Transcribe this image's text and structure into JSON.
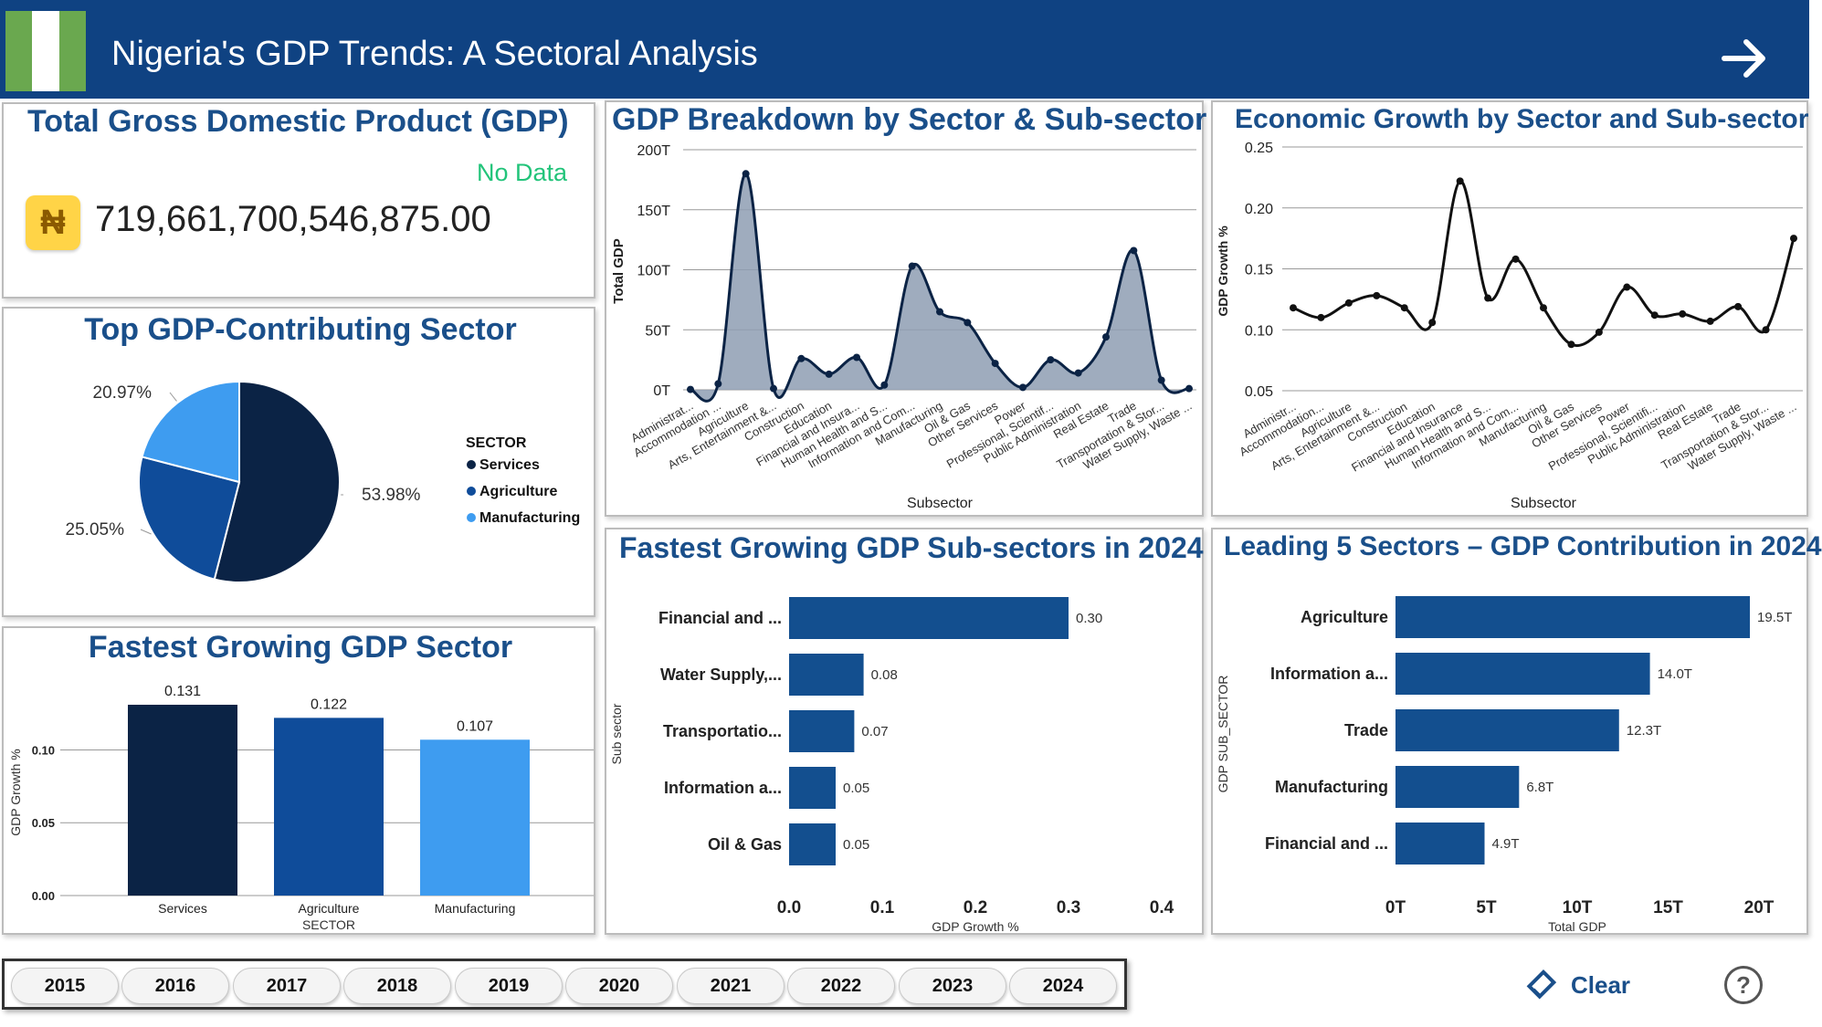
{
  "header": {
    "title": "Nigeria's GDP Trends: A Sectoral Analysis",
    "flag_icon": "nigeria-flag-icon",
    "nav_icon": "arrow-right-icon"
  },
  "colors": {
    "header_bg": "#0f4282",
    "title_blue": "#1a4f8a",
    "no_data_green": "#22c47a",
    "services": "#0b2345",
    "agriculture": "#0f4c9a",
    "manufacturing": "#3e9cf0",
    "bar_blue": "#134f8f",
    "area_fill": "#8e9db3"
  },
  "total_gdp": {
    "title": "Total Gross Domestic Product (GDP)",
    "status": "No Data",
    "value": "719,661,700,546,875.00",
    "currency_icon": "naira-icon",
    "currency_symbol": "₦"
  },
  "top_sector": {
    "title": "Top GDP-Contributing Sector",
    "legend_title": "SECTOR",
    "chart_data": {
      "type": "pie",
      "labels": [
        "Services",
        "Agriculture",
        "Manufacturing"
      ],
      "values": [
        53.98,
        25.05,
        20.97
      ],
      "value_labels": [
        "53.98%",
        "25.05%",
        "20.97%"
      ],
      "colors": [
        "#0b2345",
        "#0f4c9a",
        "#3e9cf0"
      ],
      "legend_position": "right"
    }
  },
  "fastest_sector": {
    "title": "Fastest Growing GDP Sector",
    "chart_data": {
      "type": "bar",
      "categories": [
        "Services",
        "Agriculture",
        "Manufacturing"
      ],
      "values": [
        0.131,
        0.122,
        0.107
      ],
      "value_labels": [
        "0.131",
        "0.122",
        "0.107"
      ],
      "colors": [
        "#0b2345",
        "#0f4c9a",
        "#3e9cf0"
      ],
      "xlabel": "SECTOR",
      "ylabel": "GDP Growth %",
      "yticks": [
        "0.00",
        "0.05",
        "0.10"
      ],
      "ylim": [
        0,
        0.131
      ],
      "grid": true
    }
  },
  "breakdown": {
    "title": "GDP Breakdown by Sector & Sub-sector",
    "chart_data": {
      "type": "area",
      "xlabel": "Subsector",
      "ylabel": "Total GDP",
      "yticks": [
        "0T",
        "50T",
        "100T",
        "150T",
        "200T"
      ],
      "ylim": [
        0,
        200
      ],
      "grid": true,
      "categories": [
        "Administrat...",
        "Accommodation ...",
        "Agriculture",
        "Arts, Entertainment &...",
        "Construction",
        "Education",
        "Financial and Insura...",
        "Human Health and S...",
        "Information and Com...",
        "Manufacturing",
        "Oil & Gas",
        "Other Services",
        "Power",
        "Professional, Scientif...",
        "Public Administration",
        "Real Estate",
        "Trade",
        "Transportation & Stor...",
        "Water Supply, Waste ..."
      ],
      "values": [
        0.3,
        5,
        180,
        1,
        26,
        13,
        27,
        4,
        103,
        65,
        56,
        22,
        2,
        25,
        14,
        44,
        116,
        8,
        1
      ]
    }
  },
  "growth": {
    "title": "Economic Growth by Sector and Sub-sector",
    "chart_data": {
      "type": "line",
      "xlabel": "Subsector",
      "ylabel": "GDP Growth %",
      "yticks": [
        "0.05",
        "0.10",
        "0.15",
        "0.20",
        "0.25"
      ],
      "ylim": [
        0.05,
        0.25
      ],
      "grid": true,
      "categories": [
        "Administr...",
        "Accommodation...",
        "Agriculture",
        "Arts, Entertainment &...",
        "Construction",
        "Education",
        "Financial and Insurance",
        "Human Health and S...",
        "Information and Com...",
        "Manufacturing",
        "Oil & Gas",
        "Other Services",
        "Power",
        "Professional, Scientifi...",
        "Public Administration",
        "Real Estate",
        "Trade",
        "Transportation & Stor...",
        "Water Supply, Waste ..."
      ],
      "values": [
        0.118,
        0.11,
        0.122,
        0.128,
        0.118,
        0.106,
        0.222,
        0.126,
        0.158,
        0.118,
        0.088,
        0.098,
        0.135,
        0.112,
        0.113,
        0.107,
        0.119,
        0.1,
        0.175
      ]
    }
  },
  "fastest_sub": {
    "title": "Fastest Growing GDP Sub-sectors in 2024",
    "chart_data": {
      "type": "bar",
      "orientation": "horizontal",
      "categories": [
        "Financial and ...",
        "Water Supply,...",
        "Transportatio...",
        "Information a...",
        "Oil & Gas"
      ],
      "values": [
        0.3,
        0.08,
        0.07,
        0.05,
        0.05
      ],
      "value_labels": [
        "0.30",
        "0.08",
        "0.07",
        "0.05",
        "0.05"
      ],
      "xticks": [
        "0.0",
        "0.1",
        "0.2",
        "0.3",
        "0.4"
      ],
      "xlim": [
        0,
        0.4
      ],
      "xlabel": "GDP Growth %",
      "ylabel": "Sub sector"
    }
  },
  "leading": {
    "title": "Leading 5 Sectors – GDP Contribution in 2024",
    "chart_data": {
      "type": "bar",
      "orientation": "horizontal",
      "categories": [
        "Agriculture",
        "Information a...",
        "Trade",
        "Manufacturing",
        "Financial and ..."
      ],
      "values": [
        19.5,
        14.0,
        12.3,
        6.8,
        4.9
      ],
      "value_labels": [
        "19.5T",
        "14.0T",
        "12.3T",
        "6.8T",
        "4.9T"
      ],
      "xticks": [
        "0T",
        "5T",
        "10T",
        "15T",
        "20T"
      ],
      "xlim": [
        0,
        20
      ],
      "xlabel": "Total GDP",
      "ylabel": "GDP SUB_SECTOR"
    }
  },
  "years": [
    "2015",
    "2016",
    "2017",
    "2018",
    "2019",
    "2020",
    "2021",
    "2022",
    "2023",
    "2024"
  ],
  "actions": {
    "clear_label": "Clear",
    "clear_icon": "eraser-icon",
    "help_icon": "question-mark-icon",
    "help_glyph": "?"
  }
}
